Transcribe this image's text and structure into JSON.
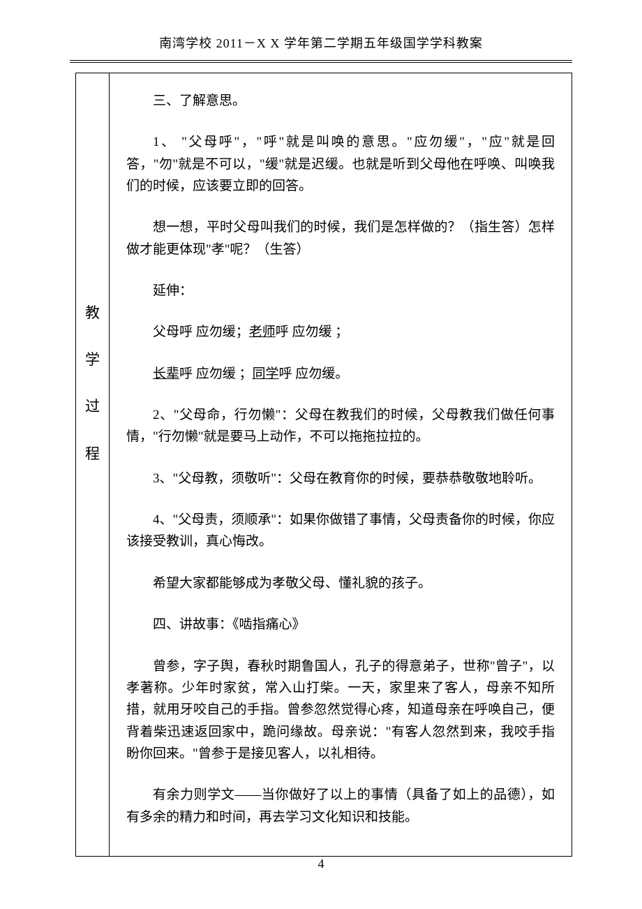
{
  "header": "南湾学校 2011－X X 学年第二学期五年级国学学科教案",
  "sideLabel": {
    "c1": "教",
    "c2": "学",
    "c3": "过",
    "c4": "程"
  },
  "body": {
    "p1": "三、了解意思。",
    "p2": "1、 \"父母呼\"，\"呼\"就是叫唤的意思。\"应勿缓\"，\"应\"就是回答，\"勿\"就是不可以，\"缓\"就是迟缓。也就是听到父母他在呼唤、叫唤我们的时候，应该要立即的回答。",
    "p3": "想一想，平时父母叫我们的时候，我们是怎样做的？（指生答）怎样做才能更体现\"孝\"呢？（生答）",
    "p4": "延伸：",
    "p5a": "父母呼 应勿缓；",
    "p5b": "老师",
    "p5c": "呼 应勿缓 ；",
    "p6a": "长辈",
    "p6b": "呼 应勿缓 ；",
    "p6c": "同学",
    "p6d": "呼 应勿缓。",
    "p7": "2、\"父母命，行勿懒\"：父母在教我们的时候，父母教我们做任何事情，\"行勿懒\"就是要马上动作，不可以拖拖拉拉的。",
    "p8": "3、\"父母教，须敬听\"：父母在教育你的时候，要恭恭敬敬地聆听。",
    "p9": "4、\"父母责，须顺承\"：如果你做错了事情，父母责备你的时候，你应该接受教训，真心悔改。",
    "p10": "希望大家都能够成为孝敬父母、懂礼貌的孩子。",
    "p11": "四、讲故事：《啮指痛心》",
    "p12": "曾参，字子舆，春秋时期鲁国人，孔子的得意弟子，世称\"曾子\"，以孝著称。少年时家贫，常入山打柴。一天，家里来了客人，母亲不知所措，就用牙咬自己的手指。曾参忽然觉得心疼，知道母亲在呼唤自己，便背着柴迅速返回家中，跪问缘故。母亲说：\"有客人忽然到来，我咬手指盼你回来。\"曾参于是接见客人，以礼相待。",
    "p13": "有余力则学文——当你做好了以上的事情（具备了如上的品德），如有多余的精力和时间，再去学习文化知识和技能。"
  },
  "pageNumber": "4"
}
